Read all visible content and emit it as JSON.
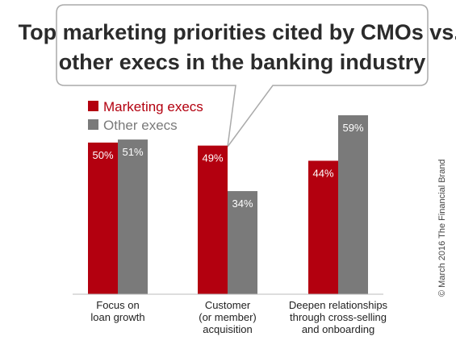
{
  "chart_data": {
    "type": "bar",
    "title": "Top marketing priorities cited by CMOs vs. other execs in the banking industry",
    "title_lines": [
      "Top marketing priorities cited by CMOs vs.",
      "other execs in the banking industry"
    ],
    "categories": [
      "Focus on loan growth",
      "Customer (or member) acquisition",
      "Deepen relationships through cross-selling and onboarding"
    ],
    "category_lines": [
      [
        "Focus on",
        "loan growth"
      ],
      [
        "Customer",
        "(or member)",
        "acquisition"
      ],
      [
        "Deepen relationships",
        "through cross-selling",
        "and onboarding"
      ]
    ],
    "series": [
      {
        "name": "Marketing execs",
        "values": [
          50,
          49,
          44
        ],
        "labels": [
          "50%",
          "49%",
          "44%"
        ],
        "color": "#b3000f"
      },
      {
        "name": "Other execs",
        "values": [
          51,
          34,
          59
        ],
        "labels": [
          "51%",
          "34%",
          "59%"
        ],
        "color": "#7a7a7a"
      }
    ],
    "ylim": [
      0,
      59
    ],
    "grid": false,
    "legend": "top-left",
    "source": "© March 2016 The Financial Brand"
  },
  "colors": {
    "callout_border": "#aaaaaa",
    "baseline": "#bbbbbb",
    "title_text": "#2b2b2b"
  }
}
